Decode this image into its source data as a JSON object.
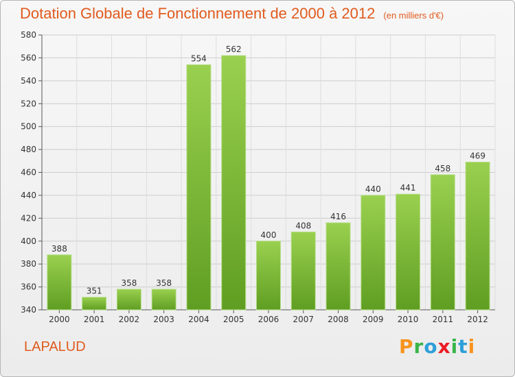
{
  "title": "Dotation Globale de Fonctionnement de 2000 à 2012",
  "subtitle": "(en milliers d'€)",
  "commune": "LAPALUD",
  "logo": {
    "letters": [
      "P",
      "r",
      "o",
      "x",
      "i",
      "t",
      "i"
    ]
  },
  "colors": {
    "bar": "#7fc241",
    "bar_dark": "#5d9c22",
    "title": "#e05a1e",
    "grid": "#cccccc"
  },
  "chart_data": {
    "type": "bar",
    "categories": [
      "2000",
      "2001",
      "2002",
      "2003",
      "2004",
      "2005",
      "2006",
      "2007",
      "2008",
      "2009",
      "2010",
      "2011",
      "2012"
    ],
    "values": [
      388,
      351,
      358,
      358,
      554,
      562,
      400,
      408,
      416,
      440,
      441,
      458,
      469
    ],
    "ylim": [
      340,
      580
    ],
    "yticks": [
      340,
      360,
      380,
      400,
      420,
      440,
      460,
      480,
      500,
      520,
      540,
      560,
      580
    ],
    "grid": true,
    "data_labels": true
  }
}
